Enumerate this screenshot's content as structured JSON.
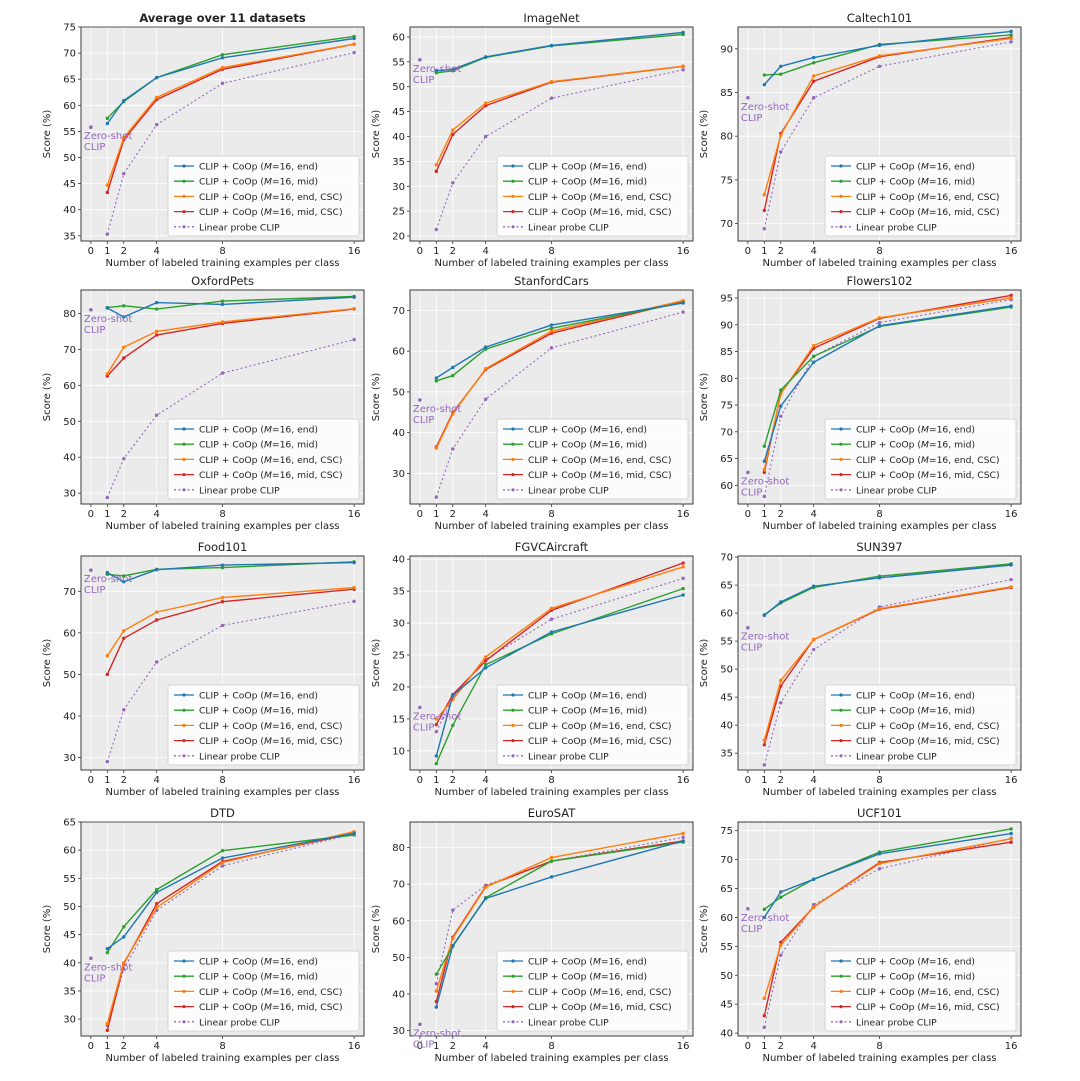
{
  "figure": {
    "xlabel": "Number of labeled training examples per class",
    "ylabel": "Score (%)",
    "zero_shot_label": [
      "Zero-shot",
      "CLIP"
    ],
    "legend": [
      {
        "pre": "CLIP + CoOp (",
        "mid": "=16, end)"
      },
      {
        "pre": "CLIP + CoOp (",
        "mid": "=16, mid)"
      },
      {
        "pre": "CLIP + CoOp (",
        "mid": "=16, end, CSC)"
      },
      {
        "pre": "CLIP + CoOp (",
        "mid": "=16, mid, CSC)"
      },
      {
        "pre": "Linear probe CLIP",
        "mid": ""
      }
    ],
    "legend_placement": "lower-right",
    "legend_m_symbol": "M",
    "colors": [
      "#1f77b4",
      "#2ca02c",
      "#ff7f0e",
      "#d62728",
      "#9467bd"
    ]
  },
  "chart_data": [
    {
      "type": "line",
      "title": "Average over 11 datasets",
      "bold_title": true,
      "x": [
        1,
        2,
        4,
        8,
        16
      ],
      "xticks": [
        0,
        1,
        2,
        4,
        8,
        16
      ],
      "ylim": [
        34,
        75
      ],
      "yticks": [
        35,
        40,
        45,
        50,
        55,
        60,
        65,
        70,
        75
      ],
      "zero_shot": 55.8,
      "series": [
        {
          "name": "CLIP + CoOp (M=16, end)",
          "values": [
            56.5,
            60.9,
            65.3,
            69.1,
            72.8
          ]
        },
        {
          "name": "CLIP + CoOp (M=16, mid)",
          "values": [
            57.5,
            60.7,
            65.3,
            69.7,
            73.2
          ]
        },
        {
          "name": "CLIP + CoOp (M=16, end, CSC)",
          "values": [
            44.7,
            53.8,
            61.5,
            67.2,
            71.7
          ]
        },
        {
          "name": "CLIP + CoOp (M=16, mid, CSC)",
          "values": [
            43.3,
            53.4,
            61.1,
            66.9,
            71.7
          ]
        },
        {
          "name": "Linear probe CLIP",
          "values": [
            35.3,
            46.9,
            56.3,
            64.2,
            70.1
          ]
        }
      ]
    },
    {
      "type": "line",
      "title": "ImageNet",
      "x": [
        1,
        2,
        4,
        8,
        16
      ],
      "xticks": [
        0,
        1,
        2,
        4,
        8,
        16
      ],
      "ylim": [
        19,
        62
      ],
      "yticks": [
        20,
        25,
        30,
        35,
        40,
        45,
        50,
        55,
        60
      ],
      "zero_shot": 55.4,
      "series": [
        {
          "name": "CLIP + CoOp (M=16, end)",
          "values": [
            53.2,
            53.5,
            56.0,
            58.3,
            60.9
          ]
        },
        {
          "name": "CLIP + CoOp (M=16, mid)",
          "values": [
            52.8,
            53.2,
            55.9,
            58.2,
            60.5
          ]
        },
        {
          "name": "CLIP + CoOp (M=16, end, CSC)",
          "values": [
            34.3,
            41.3,
            46.7,
            51.0,
            54.1
          ]
        },
        {
          "name": "CLIP + CoOp (M=16, mid, CSC)",
          "values": [
            33.0,
            40.4,
            46.2,
            50.9,
            54.1
          ]
        },
        {
          "name": "Linear probe CLIP",
          "values": [
            21.3,
            30.7,
            40.0,
            47.7,
            53.4
          ]
        }
      ]
    },
    {
      "type": "line",
      "title": "Caltech101",
      "x": [
        1,
        2,
        4,
        8,
        16
      ],
      "xticks": [
        0,
        1,
        2,
        4,
        8,
        16
      ],
      "ylim": [
        68,
        92.5
      ],
      "yticks": [
        70,
        75,
        80,
        85,
        90
      ],
      "zero_shot": 84.4,
      "series": [
        {
          "name": "CLIP + CoOp (M=16, end)",
          "values": [
            85.9,
            88.0,
            89.0,
            90.4,
            92.0
          ]
        },
        {
          "name": "CLIP + CoOp (M=16, mid)",
          "values": [
            87.0,
            87.1,
            88.4,
            90.5,
            91.6
          ]
        },
        {
          "name": "CLIP + CoOp (M=16, end, CSC)",
          "values": [
            73.3,
            80.1,
            86.9,
            89.2,
            91.2
          ]
        },
        {
          "name": "CLIP + CoOp (M=16, mid, CSC)",
          "values": [
            71.5,
            80.3,
            86.3,
            89.1,
            91.3
          ]
        },
        {
          "name": "Linear probe CLIP",
          "values": [
            69.4,
            78.2,
            84.4,
            88.0,
            90.8
          ]
        }
      ]
    },
    {
      "type": "line",
      "title": "OxfordPets",
      "x": [
        1,
        2,
        4,
        8,
        16
      ],
      "xticks": [
        0,
        1,
        2,
        4,
        8,
        16
      ],
      "ylim": [
        27,
        86.5
      ],
      "yticks": [
        30,
        40,
        50,
        60,
        70,
        80
      ],
      "zero_shot": 81.0,
      "series": [
        {
          "name": "CLIP + CoOp (M=16, end)",
          "values": [
            81.5,
            79.0,
            83.0,
            82.5,
            84.5
          ]
        },
        {
          "name": "CLIP + CoOp (M=16, mid)",
          "values": [
            81.6,
            82.1,
            81.2,
            83.4,
            84.7
          ]
        },
        {
          "name": "CLIP + CoOp (M=16, end, CSC)",
          "values": [
            63.2,
            70.6,
            75.0,
            77.6,
            81.3
          ]
        },
        {
          "name": "CLIP + CoOp (M=16, mid, CSC)",
          "values": [
            62.6,
            67.6,
            74.0,
            77.2,
            81.2
          ]
        },
        {
          "name": "Linear probe CLIP",
          "values": [
            28.8,
            39.6,
            51.7,
            63.4,
            72.7
          ]
        }
      ]
    },
    {
      "type": "line",
      "title": "StanfordCars",
      "x": [
        1,
        2,
        4,
        8,
        16
      ],
      "xticks": [
        0,
        1,
        2,
        4,
        8,
        16
      ],
      "ylim": [
        22.5,
        75
      ],
      "yticks": [
        30,
        40,
        50,
        60,
        70
      ],
      "zero_shot": 48.0,
      "series": [
        {
          "name": "CLIP + CoOp (M=16, end)",
          "values": [
            53.4,
            56.0,
            61.0,
            66.4,
            71.8
          ]
        },
        {
          "name": "CLIP + CoOp (M=16, mid)",
          "values": [
            52.7,
            54.0,
            60.5,
            65.6,
            71.9
          ]
        },
        {
          "name": "CLIP + CoOp (M=16, end, CSC)",
          "values": [
            36.2,
            44.6,
            55.7,
            64.9,
            72.4
          ]
        },
        {
          "name": "CLIP + CoOp (M=16, mid, CSC)",
          "values": [
            36.5,
            44.9,
            55.5,
            64.4,
            72.2
          ]
        },
        {
          "name": "Linear probe CLIP",
          "values": [
            24.2,
            36.0,
            48.2,
            60.8,
            69.6
          ]
        }
      ]
    },
    {
      "type": "line",
      "title": "Flowers102",
      "x": [
        1,
        2,
        4,
        8,
        16
      ],
      "xticks": [
        0,
        1,
        2,
        4,
        8,
        16
      ],
      "ylim": [
        56.5,
        96.5
      ],
      "yticks": [
        60,
        65,
        70,
        75,
        80,
        85,
        90,
        95
      ],
      "zero_shot": 62.4,
      "series": [
        {
          "name": "CLIP + CoOp (M=16, end)",
          "values": [
            64.5,
            74.8,
            83.0,
            89.8,
            93.5
          ]
        },
        {
          "name": "CLIP + CoOp (M=16, mid)",
          "values": [
            67.3,
            77.8,
            84.1,
            89.7,
            93.3
          ]
        },
        {
          "name": "CLIP + CoOp (M=16, end, CSC)",
          "values": [
            62.9,
            77.1,
            86.1,
            91.3,
            95.0
          ]
        },
        {
          "name": "CLIP + CoOp (M=16, mid, CSC)",
          "values": [
            62.4,
            77.2,
            85.6,
            91.2,
            95.5
          ]
        },
        {
          "name": "Linear probe CLIP",
          "values": [
            57.9,
            72.9,
            84.1,
            90.4,
            94.7
          ]
        }
      ]
    },
    {
      "type": "line",
      "title": "Food101",
      "x": [
        1,
        2,
        4,
        8,
        16
      ],
      "xticks": [
        0,
        1,
        2,
        4,
        8,
        16
      ],
      "ylim": [
        27,
        78.5
      ],
      "yticks": [
        30,
        40,
        50,
        60,
        70
      ],
      "zero_shot": 75.1,
      "series": [
        {
          "name": "CLIP + CoOp (M=16, end)",
          "values": [
            74.5,
            72.3,
            75.2,
            76.3,
            76.9
          ]
        },
        {
          "name": "CLIP + CoOp (M=16, mid)",
          "values": [
            74.1,
            73.7,
            75.3,
            75.7,
            77.1
          ]
        },
        {
          "name": "CLIP + CoOp (M=16, end, CSC)",
          "values": [
            54.5,
            60.5,
            65.0,
            68.5,
            70.9
          ]
        },
        {
          "name": "CLIP + CoOp (M=16, mid, CSC)",
          "values": [
            50.0,
            58.7,
            63.1,
            67.5,
            70.5
          ]
        },
        {
          "name": "Linear probe CLIP",
          "values": [
            29.0,
            41.5,
            53.0,
            61.8,
            67.6
          ]
        }
      ]
    },
    {
      "type": "line",
      "title": "FGVCAircraft",
      "x": [
        1,
        2,
        4,
        8,
        16
      ],
      "xticks": [
        0,
        1,
        2,
        4,
        8,
        16
      ],
      "ylim": [
        7,
        40.5
      ],
      "yticks": [
        10,
        15,
        20,
        25,
        30,
        35,
        40
      ],
      "zero_shot": 16.8,
      "series": [
        {
          "name": "CLIP + CoOp (M=16, end)",
          "values": [
            9.2,
            18.7,
            23.0,
            28.6,
            34.4
          ]
        },
        {
          "name": "CLIP + CoOp (M=16, mid)",
          "values": [
            8.0,
            14.0,
            23.5,
            28.3,
            35.4
          ]
        },
        {
          "name": "CLIP + CoOp (M=16, end, CSC)",
          "values": [
            15.0,
            18.0,
            24.7,
            32.3,
            38.8
          ]
        },
        {
          "name": "CLIP + CoOp (M=16, mid, CSC)",
          "values": [
            14.1,
            18.8,
            24.1,
            32.0,
            39.4
          ]
        },
        {
          "name": "Linear probe CLIP",
          "values": [
            13.0,
            18.3,
            24.3,
            30.6,
            37.0
          ]
        }
      ]
    },
    {
      "type": "line",
      "title": "SUN397",
      "x": [
        1,
        2,
        4,
        8,
        16
      ],
      "xticks": [
        0,
        1,
        2,
        4,
        8,
        16
      ],
      "ylim": [
        32,
        70.2
      ],
      "yticks": [
        35,
        40,
        45,
        50,
        55,
        60,
        65,
        70
      ],
      "zero_shot": 57.4,
      "series": [
        {
          "name": "CLIP + CoOp (M=16, end)",
          "values": [
            59.6,
            62.0,
            64.8,
            66.3,
            68.6
          ]
        },
        {
          "name": "CLIP + CoOp (M=16, mid)",
          "values": [
            59.7,
            61.8,
            64.6,
            66.6,
            68.8
          ]
        },
        {
          "name": "CLIP + CoOp (M=16, end, CSC)",
          "values": [
            37.3,
            48.0,
            55.3,
            60.8,
            64.7
          ]
        },
        {
          "name": "CLIP + CoOp (M=16, mid, CSC)",
          "values": [
            36.5,
            47.0,
            55.3,
            60.7,
            64.6
          ]
        },
        {
          "name": "Linear probe CLIP",
          "values": [
            32.9,
            44.0,
            53.5,
            61.1,
            66.0
          ]
        }
      ]
    },
    {
      "type": "line",
      "title": "DTD",
      "x": [
        1,
        2,
        4,
        8,
        16
      ],
      "xticks": [
        0,
        1,
        2,
        4,
        8,
        16
      ],
      "ylim": [
        27,
        65
      ],
      "yticks": [
        30,
        35,
        40,
        45,
        50,
        55,
        60,
        65
      ],
      "zero_shot": 40.8,
      "series": [
        {
          "name": "CLIP + CoOp (M=16, end)",
          "values": [
            42.5,
            44.6,
            52.5,
            58.6,
            63.0
          ]
        },
        {
          "name": "CLIP + CoOp (M=16, mid)",
          "values": [
            41.8,
            46.4,
            53.0,
            59.9,
            62.7
          ]
        },
        {
          "name": "CLIP + CoOp (M=16, end, CSC)",
          "values": [
            29.2,
            40.0,
            49.8,
            57.8,
            63.3
          ]
        },
        {
          "name": "CLIP + CoOp (M=16, mid, CSC)",
          "values": [
            28.0,
            39.8,
            50.5,
            58.0,
            63.0
          ]
        },
        {
          "name": "Linear probe CLIP",
          "values": [
            28.9,
            38.9,
            49.3,
            57.2,
            62.9
          ]
        }
      ]
    },
    {
      "type": "line",
      "title": "EuroSAT",
      "x": [
        1,
        2,
        4,
        8,
        16
      ],
      "xticks": [
        0,
        1,
        2,
        4,
        8,
        16
      ],
      "ylim": [
        28.5,
        87
      ],
      "yticks": [
        30,
        40,
        50,
        60,
        70,
        80
      ],
      "zero_shot": 31.7,
      "series": [
        {
          "name": "CLIP + CoOp (M=16, end)",
          "values": [
            36.4,
            53.2,
            66.1,
            72.0,
            81.8
          ]
        },
        {
          "name": "CLIP + CoOp (M=16, mid)",
          "values": [
            45.4,
            53.0,
            66.3,
            76.3,
            81.5
          ]
        },
        {
          "name": "CLIP + CoOp (M=16, end, CSC)",
          "values": [
            40.8,
            55.2,
            69.2,
            77.3,
            83.9
          ]
        },
        {
          "name": "CLIP + CoOp (M=16, mid, CSC)",
          "values": [
            37.9,
            55.5,
            69.4,
            76.3,
            81.8
          ]
        },
        {
          "name": "Linear probe CLIP",
          "values": [
            42.8,
            62.9,
            69.7,
            76.3,
            82.8
          ]
        }
      ]
    },
    {
      "type": "line",
      "title": "UCF101",
      "x": [
        1,
        2,
        4,
        8,
        16
      ],
      "xticks": [
        0,
        1,
        2,
        4,
        8,
        16
      ],
      "ylim": [
        39.5,
        76.5
      ],
      "yticks": [
        40,
        45,
        50,
        55,
        60,
        65,
        70,
        75
      ],
      "zero_shot": 61.5,
      "series": [
        {
          "name": "CLIP + CoOp (M=16, end)",
          "values": [
            60.0,
            64.4,
            66.6,
            71.0,
            74.5
          ]
        },
        {
          "name": "CLIP + CoOp (M=16, mid)",
          "values": [
            61.4,
            63.5,
            66.6,
            71.3,
            75.3
          ]
        },
        {
          "name": "CLIP + CoOp (M=16, end, CSC)",
          "values": [
            46.0,
            55.2,
            61.8,
            69.3,
            73.6
          ]
        },
        {
          "name": "CLIP + CoOp (M=16, mid, CSC)",
          "values": [
            43.0,
            55.7,
            61.8,
            69.5,
            73.0
          ]
        },
        {
          "name": "Linear probe CLIP",
          "values": [
            41.0,
            53.5,
            62.2,
            68.4,
            73.7
          ]
        }
      ]
    }
  ]
}
